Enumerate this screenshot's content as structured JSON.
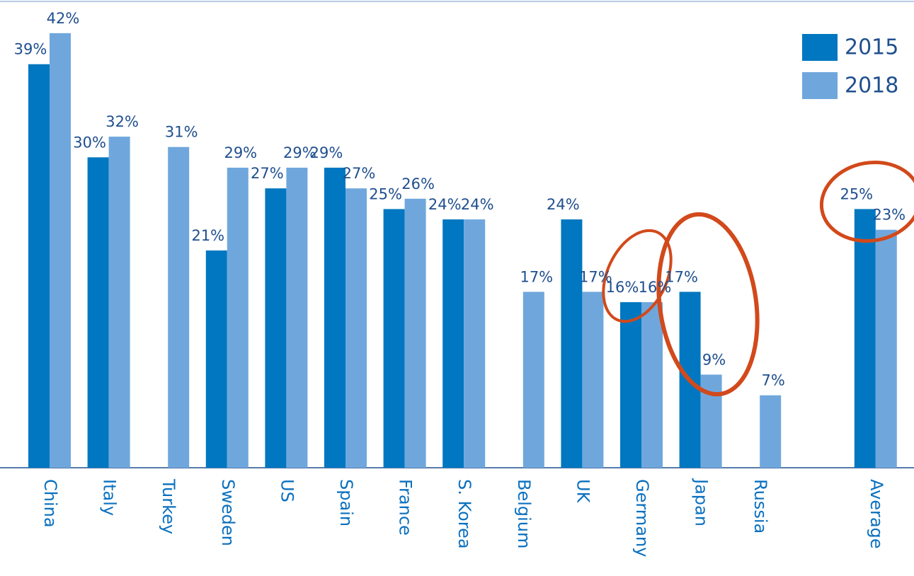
{
  "chart_data": {
    "type": "bar",
    "categories": [
      "China",
      "Italy",
      "Turkey",
      "Sweden",
      "US",
      "Spain",
      "France",
      "S. Korea",
      "Belgium",
      "UK",
      "Germany",
      "Japan",
      "Russia",
      "Average"
    ],
    "series": [
      {
        "name": "2015",
        "color": "#0077c0",
        "values": [
          39,
          30,
          null,
          21,
          27,
          29,
          25,
          24,
          null,
          24,
          16,
          17,
          null,
          25
        ],
        "value_labels": [
          "39%",
          "30%",
          null,
          "21%",
          "27%",
          "29%",
          "25%",
          "24%",
          null,
          "24%",
          "16%",
          "17%",
          null,
          "25%"
        ]
      },
      {
        "name": "2018",
        "color": "#6fa7dd",
        "values": [
          42,
          32,
          31,
          29,
          29,
          27,
          26,
          24,
          17,
          17,
          16,
          9,
          7,
          23
        ],
        "value_labels": [
          "42%",
          "32%",
          "31%",
          "29%",
          "29%",
          "27%",
          "26%",
          "24%",
          "17%",
          "17%",
          "16%",
          "9%",
          "7%",
          "23%"
        ]
      }
    ],
    "ylim": [
      0,
      45
    ],
    "legend": "top-right"
  }
}
